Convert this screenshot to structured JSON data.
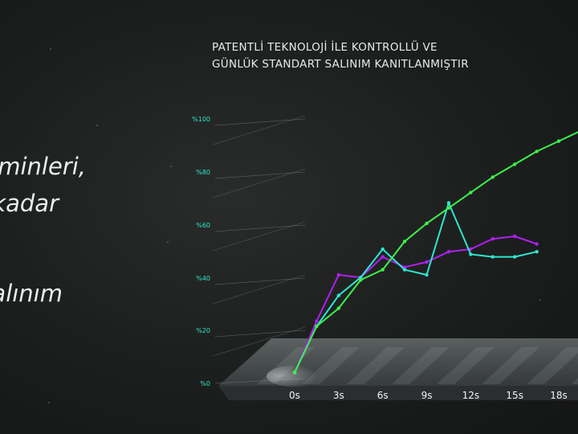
{
  "left_text": {
    "line1": "aminleri,",
    "line2": "kadar",
    "line3": "salınım"
  },
  "chart_data": {
    "type": "line",
    "title_lines": [
      "PATENTLİ TEKNOLOJİ İLE KONTROLLÜ VE",
      "GÜNLÜK STANDART SALINIM KANITLANMIŞTIR"
    ],
    "y_ticks": [
      "%0",
      "%20",
      "%40",
      "%60",
      "%80",
      "%100"
    ],
    "ylim": [
      0,
      100
    ],
    "categories": [
      "0s",
      "3s",
      "6s",
      "9s",
      "12s",
      "15s",
      "18s"
    ],
    "x_values": [
      0,
      1.5,
      3,
      4.5,
      6,
      7.5,
      9,
      10.5,
      12,
      13.5,
      15,
      16.5,
      18,
      19.5
    ],
    "series": [
      {
        "color": "#b020f0",
        "values": [
          2,
          22,
          40,
          39,
          47,
          43,
          45,
          49,
          50,
          54,
          55,
          52,
          null,
          null
        ]
      },
      {
        "color": "#2ee6d0",
        "values": [
          2,
          20,
          32,
          39,
          50,
          42,
          40,
          68,
          48,
          47,
          47,
          49,
          null,
          null
        ]
      },
      {
        "color": "#3ef04a",
        "values": [
          2,
          20,
          27,
          38,
          42,
          53,
          60,
          66,
          72,
          78,
          83,
          88,
          92,
          96
        ]
      }
    ]
  }
}
